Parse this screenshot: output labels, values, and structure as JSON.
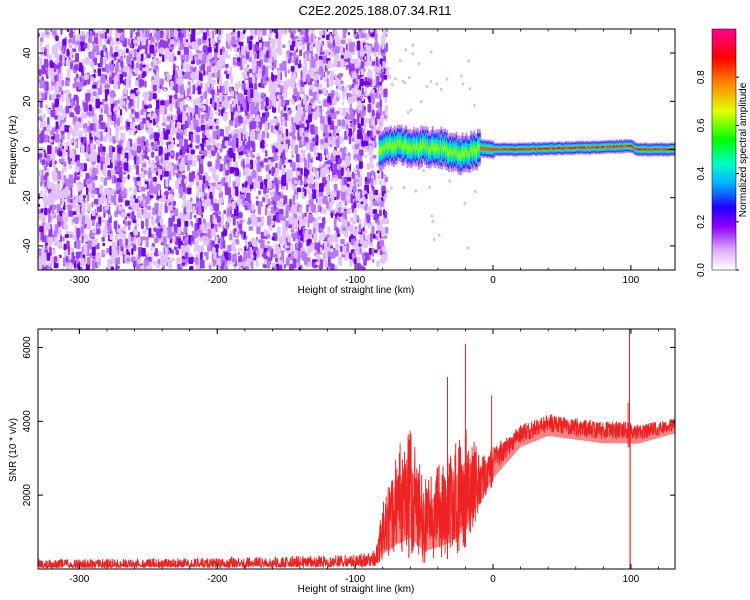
{
  "title": "C2E2.2025.188.07.34.R11",
  "chart_data": [
    {
      "type": "heatmap",
      "xlabel": "Height of straight line (km)",
      "ylabel": "Frequency (Hz)",
      "xlim": [
        -330,
        132
      ],
      "ylim": [
        -50,
        50
      ],
      "xticks": [
        -300,
        -200,
        -100,
        0,
        100
      ],
      "yticks": [
        -40,
        -20,
        0,
        20,
        40
      ],
      "grid": false,
      "noise_region_x": [
        -330,
        -83
      ],
      "signal_track": [
        {
          "x": -83,
          "y": 0.0
        },
        {
          "x": -70,
          "y": 1.5
        },
        {
          "x": -55,
          "y": 0.5
        },
        {
          "x": -40,
          "y": 1.0
        },
        {
          "x": -25,
          "y": -2.0
        },
        {
          "x": -10,
          "y": 0.5
        },
        {
          "x": 0,
          "y": 0.0
        },
        {
          "x": 20,
          "y": 0.0
        },
        {
          "x": 50,
          "y": 0.5
        },
        {
          "x": 80,
          "y": 1.0
        },
        {
          "x": 100,
          "y": 1.5
        },
        {
          "x": 103,
          "y": 0.0
        },
        {
          "x": 132,
          "y": 0.0
        }
      ],
      "colorbar": {
        "label": "Normalized spectral amplitude",
        "range": [
          0,
          1
        ],
        "ticks": [
          0.0,
          0.2,
          0.4,
          0.6,
          0.8
        ],
        "colors": [
          "#ffffff",
          "#b000ff",
          "#0000ff",
          "#00c8ff",
          "#00ff00",
          "#ffff00",
          "#ff8000",
          "#ff0000",
          "#ff00a0"
        ]
      }
    },
    {
      "type": "line",
      "xlabel": "Height of straight line (km)",
      "ylabel": "SNR (10 * v/v)",
      "xlim": [
        -330,
        132
      ],
      "ylim": [
        0,
        6500
      ],
      "xticks": [
        -300,
        -200,
        -100,
        0,
        100
      ],
      "yticks": [
        2000,
        4000,
        6000
      ],
      "grid": false,
      "series_color": "#ee2222",
      "envelope": [
        {
          "x": -330,
          "low": 30,
          "high": 260
        },
        {
          "x": -200,
          "low": 40,
          "high": 300
        },
        {
          "x": -100,
          "low": 60,
          "high": 400
        },
        {
          "x": -85,
          "low": 80,
          "high": 500
        },
        {
          "x": -80,
          "low": 150,
          "high": 1800
        },
        {
          "x": -70,
          "low": 200,
          "high": 3300
        },
        {
          "x": -60,
          "low": 300,
          "high": 3900
        },
        {
          "x": -50,
          "low": 150,
          "high": 2400
        },
        {
          "x": -40,
          "low": 200,
          "high": 2800
        },
        {
          "x": -30,
          "low": 300,
          "high": 3200
        },
        {
          "x": -20,
          "low": 600,
          "high": 3900
        },
        {
          "x": -10,
          "low": 1500,
          "high": 3200
        },
        {
          "x": 0,
          "low": 2300,
          "high": 3300
        },
        {
          "x": 20,
          "low": 3200,
          "high": 3900
        },
        {
          "x": 40,
          "low": 3500,
          "high": 4200
        },
        {
          "x": 60,
          "low": 3400,
          "high": 4100
        },
        {
          "x": 80,
          "low": 3300,
          "high": 4000
        },
        {
          "x": 95,
          "low": 3300,
          "high": 4000
        },
        {
          "x": 105,
          "low": 3300,
          "high": 3900
        },
        {
          "x": 132,
          "low": 3600,
          "high": 4100
        }
      ],
      "spikes": [
        {
          "x": -33,
          "y": 5200
        },
        {
          "x": -20,
          "y": 6100
        },
        {
          "x": -1,
          "y": 4700
        },
        {
          "x": 98,
          "y": 4500
        },
        {
          "x": 99,
          "y": 6500
        }
      ],
      "dips": [
        {
          "x": 99,
          "y": 0
        }
      ]
    }
  ]
}
